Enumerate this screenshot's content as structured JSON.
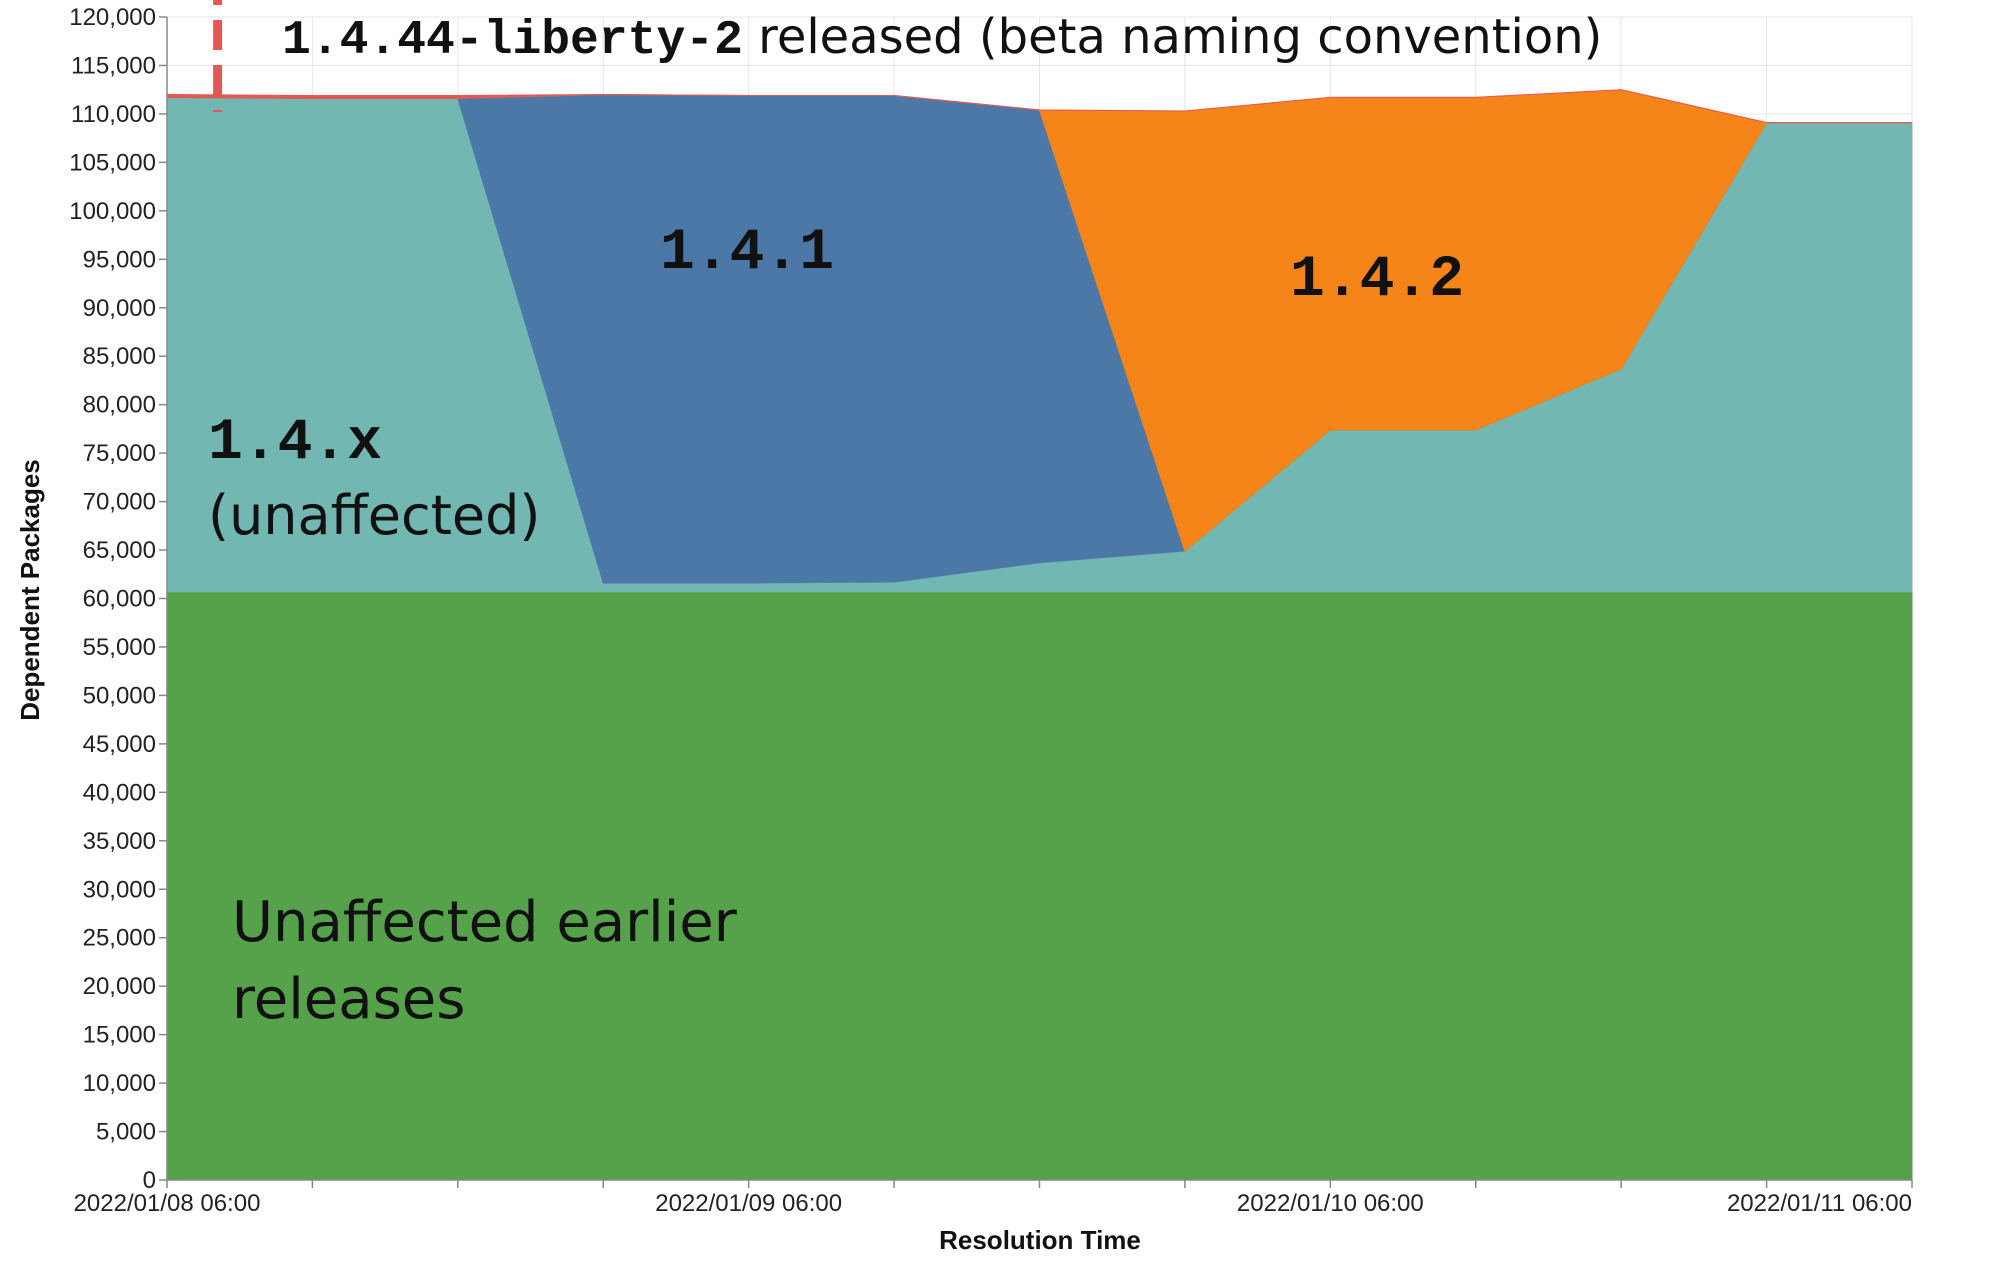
{
  "chart_data": {
    "type": "area",
    "stacked": true,
    "xlabel": "Resolution Time",
    "ylabel": "Dependent Packages",
    "ylim": [
      0,
      120000
    ],
    "y_ticks": [
      0,
      5000,
      10000,
      15000,
      20000,
      25000,
      30000,
      35000,
      40000,
      45000,
      50000,
      55000,
      60000,
      65000,
      70000,
      75000,
      80000,
      85000,
      90000,
      95000,
      100000,
      105000,
      110000,
      115000,
      120000
    ],
    "y_tick_labels": [
      "0",
      "5,000",
      "10,000",
      "15,000",
      "20,000",
      "25,000",
      "30,000",
      "35,000",
      "40,000",
      "45,000",
      "50,000",
      "55,000",
      "60,000",
      "65,000",
      "70,000",
      "75,000",
      "80,000",
      "85,000",
      "90,000",
      "95,000",
      "100,000",
      "105,000",
      "110,000",
      "115,000",
      "120,000"
    ],
    "x_range": [
      "2022/01/08 06:00",
      "2022/01/11 06:00"
    ],
    "x_tick_labels": [
      "2022/01/08 06:00",
      "2022/01/09 06:00",
      "2022/01/10 06:00",
      "2022/01/11 06:00"
    ],
    "x": [
      "2022/01/08 06:00",
      "2022/01/08 12:00",
      "2022/01/08 18:00",
      "2022/01/09 00:00",
      "2022/01/09 06:00",
      "2022/01/09 12:00",
      "2022/01/09 18:00",
      "2022/01/10 00:00",
      "2022/01/10 06:00",
      "2022/01/10 12:00",
      "2022/01/10 18:00",
      "2022/01/11 00:00",
      "2022/01/11 06:00"
    ],
    "series": [
      {
        "key": "earlier",
        "color": "#55a24a",
        "values": [
          60700,
          60700,
          60700,
          60700,
          60700,
          60700,
          60700,
          60700,
          60700,
          60700,
          60700,
          60700,
          60700
        ]
      },
      {
        "key": "x",
        "color": "#72b7b2",
        "values": [
          51000,
          50900,
          50900,
          900,
          900,
          1000,
          3000,
          4200,
          16700,
          16700,
          23000,
          48400,
          48400
        ]
      },
      {
        "key": "v141",
        "color": "#4c78a8",
        "values": [
          0,
          0,
          0,
          50400,
          50300,
          50200,
          46700,
          0,
          0,
          0,
          0,
          0,
          0
        ]
      },
      {
        "key": "v142",
        "color": "#f58518",
        "values": [
          0,
          0,
          0,
          0,
          0,
          0,
          0,
          45400,
          34300,
          34300,
          28800,
          0,
          0
        ]
      },
      {
        "key": "liberty",
        "color": "#e45756",
        "values": [
          300,
          300,
          300,
          0,
          0,
          0,
          0,
          0,
          0,
          0,
          0,
          0,
          0
        ]
      }
    ],
    "annotations": {
      "liberty": {
        "code": "1.4.44-liberty-2",
        "text": " released (beta naming convention)",
        "color": "#e45756"
      },
      "v141": {
        "text": "1.4.1"
      },
      "v142": {
        "text": "1.4.2"
      },
      "x": {
        "code": "1.4.x",
        "text": "(unaffected)"
      },
      "earlier": {
        "line1": "Unaffected earlier",
        "line2": "releases"
      }
    },
    "grid": true,
    "legend": "none"
  }
}
